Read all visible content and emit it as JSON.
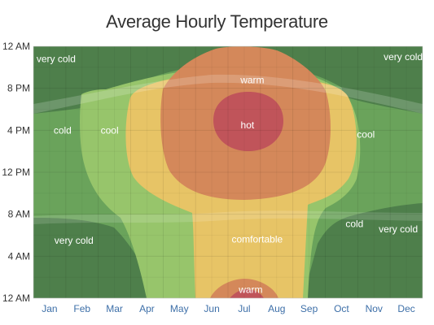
{
  "chart_data": {
    "type": "heatmap",
    "title": "Average Hourly Temperature",
    "xlabel": "",
    "ylabel": "",
    "x_ticks": [
      "Jan",
      "Feb",
      "Mar",
      "Apr",
      "May",
      "Jun",
      "Jul",
      "Aug",
      "Sep",
      "Oct",
      "Nov",
      "Dec"
    ],
    "y_ticks": [
      "12 AM",
      "8 PM",
      "4 PM",
      "12 PM",
      "8 AM",
      "4 AM",
      "12 AM"
    ],
    "y_range_hours": [
      0,
      24
    ],
    "grid": true,
    "categories": [
      "very cold",
      "cold",
      "cool",
      "comfortable",
      "warm",
      "hot"
    ],
    "colors": {
      "very cold": "#4e7f4b",
      "cold": "#6aa35b",
      "cool": "#97c56b",
      "comfortable": "#e7c466",
      "warm": "#d4885a",
      "hot": "#c0545a"
    },
    "annotations": [
      {
        "text": "very cold",
        "month": 1.2,
        "hour": 22.8
      },
      {
        "text": "very cold",
        "month": 11.9,
        "hour": 23.0
      },
      {
        "text": "warm",
        "month": 7.25,
        "hour": 20.8
      },
      {
        "text": "hot",
        "month": 7.1,
        "hour": 16.5
      },
      {
        "text": "cold",
        "month": 1.4,
        "hour": 16.0
      },
      {
        "text": "cool",
        "month": 2.85,
        "hour": 16.0
      },
      {
        "text": "cool",
        "month": 10.75,
        "hour": 15.6
      },
      {
        "text": "cold",
        "month": 10.4,
        "hour": 7.1
      },
      {
        "text": "very cold",
        "month": 11.75,
        "hour": 6.6
      },
      {
        "text": "very cold",
        "month": 1.75,
        "hour": 5.5
      },
      {
        "text": "comfortable",
        "month": 7.4,
        "hour": 5.6
      },
      {
        "text": "warm",
        "month": 7.2,
        "hour": 0.8
      }
    ]
  }
}
